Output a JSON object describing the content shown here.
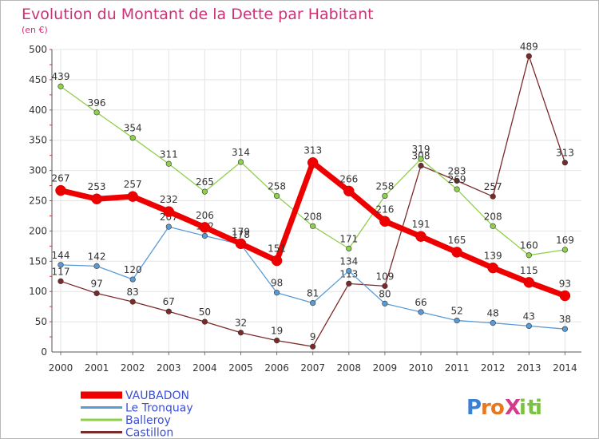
{
  "chart_data": {
    "type": "line",
    "title": "Evolution du Montant de la Dette par Habitant",
    "subtitle": "(en €)",
    "x": [
      "2000",
      "2001",
      "2002",
      "2003",
      "2004",
      "2005",
      "2006",
      "2007",
      "2008",
      "2009",
      "2010",
      "2011",
      "2012",
      "2013",
      "2014"
    ],
    "ylim": [
      0,
      500
    ],
    "yticks": [
      0,
      50,
      100,
      150,
      200,
      250,
      300,
      350,
      400,
      450,
      500
    ],
    "grid": true,
    "legend_position": "bottom-left",
    "series": [
      {
        "name": "VAUBADON",
        "color": "#ee0000",
        "values": [
          267,
          253,
          257,
          232,
          206,
          179,
          151,
          313,
          266,
          216,
          191,
          165,
          139,
          115,
          93
        ]
      },
      {
        "name": "Le Tronquay",
        "color": "#5b9bd5",
        "values": [
          144,
          142,
          120,
          207,
          192,
          178,
          98,
          81,
          134,
          80,
          66,
          52,
          48,
          43,
          38
        ]
      },
      {
        "name": "Balleroy",
        "color": "#8ed04a",
        "values": [
          439,
          396,
          354,
          311,
          265,
          314,
          258,
          208,
          171,
          258,
          319,
          269,
          208,
          160,
          169
        ]
      },
      {
        "name": "Castillon",
        "color": "#7b2a2a",
        "values": [
          117,
          97,
          83,
          67,
          50,
          32,
          19,
          9,
          113,
          109,
          308,
          283,
          257,
          489,
          313
        ]
      }
    ]
  },
  "brand": {
    "text": "ProXiti",
    "letters": [
      "P",
      "r",
      "o",
      "X",
      "i",
      "t",
      "i"
    ],
    "colors": [
      "#3b7fd6",
      "#e8771e",
      "#e8771e",
      "#d63b8a",
      "#7cc242",
      "#7cc242",
      "#7cc242"
    ]
  },
  "colors": {
    "title": "#cc3377",
    "grid": "#e4e4e4",
    "axis": "#555555",
    "legend_text": "#3a4fd6"
  }
}
